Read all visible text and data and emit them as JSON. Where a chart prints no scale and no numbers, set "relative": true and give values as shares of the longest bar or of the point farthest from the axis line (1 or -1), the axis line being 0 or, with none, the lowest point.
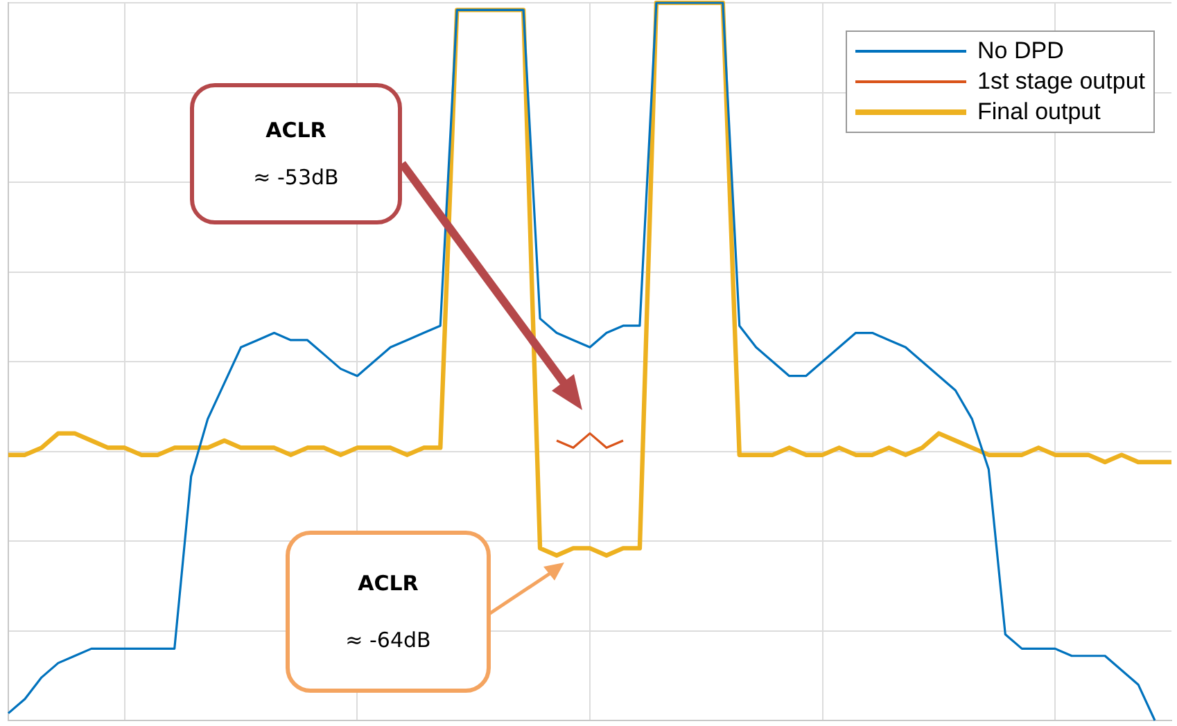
{
  "chart_data": {
    "type": "line",
    "relative": true,
    "grid": true,
    "legend": "top right",
    "annotations": [
      "ACLR",
      "≈ -53dB",
      "ACLR",
      "≈ -64dB"
    ],
    "categories": [
      null,
      null,
      null,
      null,
      null,
      null,
      null,
      null,
      null,
      null,
      null,
      null,
      null,
      null,
      null,
      null,
      null,
      null,
      null,
      null,
      null,
      null,
      null,
      null,
      null,
      null,
      null,
      null,
      null,
      null,
      null,
      null,
      null,
      null,
      null,
      null,
      null,
      null,
      null,
      null,
      null,
      null,
      null,
      null,
      null,
      null,
      null,
      null,
      null,
      null,
      null,
      null,
      null,
      null,
      null,
      null,
      null,
      null,
      null,
      null,
      null,
      null,
      null,
      null,
      null,
      null,
      null,
      null,
      null,
      null,
      null
    ],
    "series": [
      {
        "name": "No DPD",
        "color": "#0072bd",
        "values": [
          0.01,
          0.03,
          0.06,
          0.08,
          0.09,
          0.1,
          0.1,
          0.1,
          0.1,
          0.1,
          0.1,
          0.34,
          0.42,
          0.47,
          0.52,
          0.53,
          0.54,
          0.53,
          0.53,
          0.51,
          0.49,
          0.48,
          0.5,
          0.52,
          0.53,
          0.54,
          0.55,
          0.99,
          0.99,
          0.99,
          0.99,
          0.99,
          0.56,
          0.54,
          0.53,
          0.52,
          0.54,
          0.55,
          0.55,
          1.0,
          1.0,
          1.0,
          1.0,
          1.0,
          0.55,
          0.52,
          0.5,
          0.48,
          0.48,
          0.5,
          0.52,
          0.54,
          0.54,
          0.53,
          0.52,
          0.5,
          0.48,
          0.46,
          0.42,
          0.35,
          0.12,
          0.1,
          0.1,
          0.1,
          0.09,
          0.09,
          0.09,
          0.07,
          0.05,
          0.0,
          null
        ]
      },
      {
        "name": "1st stage output",
        "color": "#d95319",
        "values": [
          null,
          null,
          null,
          null,
          null,
          null,
          null,
          null,
          null,
          null,
          null,
          null,
          null,
          null,
          null,
          null,
          null,
          null,
          null,
          null,
          null,
          null,
          null,
          null,
          null,
          null,
          null,
          null,
          null,
          null,
          null,
          null,
          null,
          0.39,
          0.38,
          0.4,
          0.38,
          0.39,
          null,
          null,
          null,
          null,
          null,
          null,
          null,
          null,
          null,
          null,
          null,
          null,
          null,
          null,
          null,
          null,
          null,
          null,
          null,
          null,
          null,
          null,
          null,
          null,
          null,
          null,
          null,
          null,
          null,
          null,
          null,
          null,
          null
        ]
      },
      {
        "name": "Final output",
        "color": "#edb120",
        "values": [
          0.37,
          0.37,
          0.38,
          0.4,
          0.4,
          0.39,
          0.38,
          0.38,
          0.37,
          0.37,
          0.38,
          0.38,
          0.38,
          0.39,
          0.38,
          0.38,
          0.38,
          0.37,
          0.38,
          0.38,
          0.37,
          0.38,
          0.38,
          0.38,
          0.37,
          0.38,
          0.38,
          0.99,
          0.99,
          0.99,
          0.99,
          0.99,
          0.24,
          0.23,
          0.24,
          0.24,
          0.23,
          0.24,
          0.24,
          1.0,
          1.0,
          1.0,
          1.0,
          1.0,
          0.37,
          0.37,
          0.37,
          0.38,
          0.37,
          0.37,
          0.38,
          0.37,
          0.37,
          0.38,
          0.37,
          0.38,
          0.4,
          0.39,
          0.38,
          0.37,
          0.37,
          0.37,
          0.38,
          0.37,
          0.37,
          0.37,
          0.36,
          0.37,
          0.36,
          0.36,
          0.36
        ]
      }
    ]
  }
}
